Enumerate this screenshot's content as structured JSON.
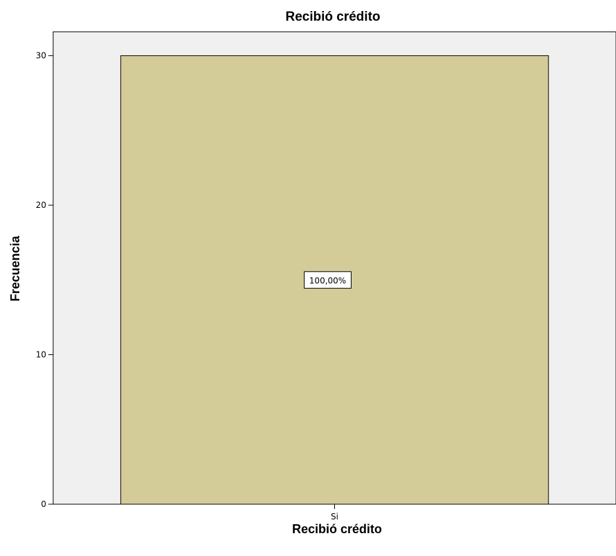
{
  "chart_data": {
    "type": "bar",
    "title": "Recibió crédito",
    "xlabel": "Recibió crédito",
    "ylabel": "Frecuencia",
    "categories": [
      "Si"
    ],
    "values": [
      30
    ],
    "data_labels": [
      "100,00%"
    ],
    "ylim": [
      0,
      31.6
    ],
    "yticks": [
      0,
      10,
      20,
      30
    ],
    "grid": false,
    "legend": "none",
    "colors": {
      "bar_fill": "#d3cc98",
      "bar_stroke": "#000000",
      "plot_background": "#f0f0f0",
      "label_box_fill": "#ffffff"
    }
  }
}
